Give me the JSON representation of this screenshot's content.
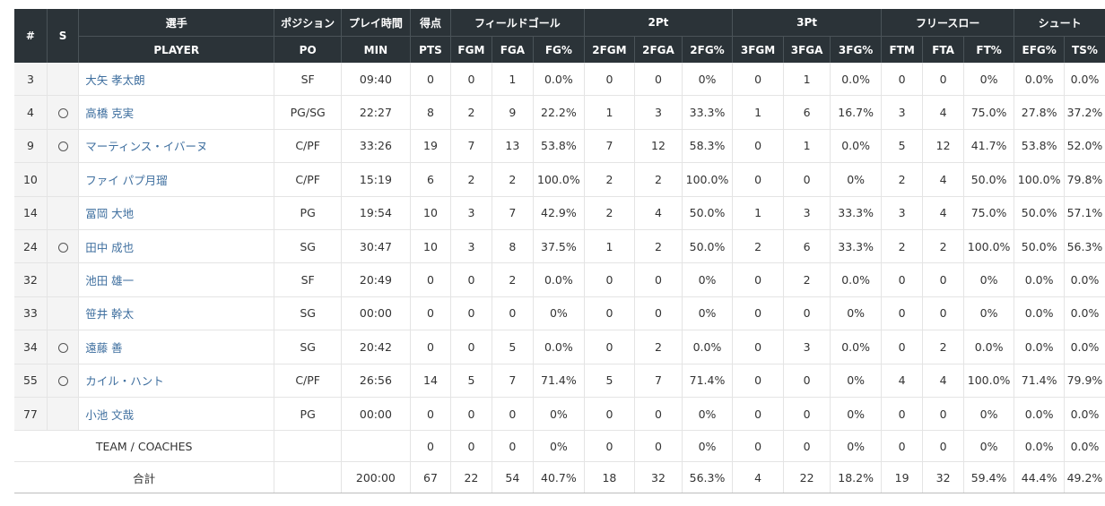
{
  "header": {
    "top": {
      "num": "#",
      "starter": "S",
      "player": "選手",
      "position": "ポジション",
      "minutes": "プレイ時間",
      "points": "得点",
      "fg": "フィールドゴール",
      "two": "2Pt",
      "three": "3Pt",
      "ft": "フリースロー",
      "shoot": "シュート"
    },
    "sub": [
      "PLAYER",
      "PO",
      "MIN",
      "PTS",
      "FGM",
      "FGA",
      "FG%",
      "2FGM",
      "2FGA",
      "2FG%",
      "3FGM",
      "3FGA",
      "3FG%",
      "FTM",
      "FTA",
      "FT%",
      "EFG%",
      "TS%"
    ]
  },
  "starter_mark": "○",
  "players": [
    {
      "num": "3",
      "s": false,
      "name": "大矢 孝太朗",
      "po": "SF",
      "min": "09:40",
      "pts": "0",
      "fgm": "0",
      "fga": "1",
      "fgp": "0.0%",
      "f2m": "0",
      "f2a": "0",
      "f2p": "0%",
      "f3m": "0",
      "f3a": "1",
      "f3p": "0.0%",
      "ftm": "0",
      "fta": "0",
      "ftp": "0%",
      "efg": "0.0%",
      "ts": "0.0%"
    },
    {
      "num": "4",
      "s": true,
      "name": "高橋 克実",
      "po": "PG/SG",
      "min": "22:27",
      "pts": "8",
      "fgm": "2",
      "fga": "9",
      "fgp": "22.2%",
      "f2m": "1",
      "f2a": "3",
      "f2p": "33.3%",
      "f3m": "1",
      "f3a": "6",
      "f3p": "16.7%",
      "ftm": "3",
      "fta": "4",
      "ftp": "75.0%",
      "efg": "27.8%",
      "ts": "37.2%"
    },
    {
      "num": "9",
      "s": true,
      "name": "マーティンス・イバーヌ",
      "po": "C/PF",
      "min": "33:26",
      "pts": "19",
      "fgm": "7",
      "fga": "13",
      "fgp": "53.8%",
      "f2m": "7",
      "f2a": "12",
      "f2p": "58.3%",
      "f3m": "0",
      "f3a": "1",
      "f3p": "0.0%",
      "ftm": "5",
      "fta": "12",
      "ftp": "41.7%",
      "efg": "53.8%",
      "ts": "52.0%"
    },
    {
      "num": "10",
      "s": false,
      "name": "ファイ パプ月瑠",
      "po": "C/PF",
      "min": "15:19",
      "pts": "6",
      "fgm": "2",
      "fga": "2",
      "fgp": "100.0%",
      "f2m": "2",
      "f2a": "2",
      "f2p": "100.0%",
      "f3m": "0",
      "f3a": "0",
      "f3p": "0%",
      "ftm": "2",
      "fta": "4",
      "ftp": "50.0%",
      "efg": "100.0%",
      "ts": "79.8%"
    },
    {
      "num": "14",
      "s": false,
      "name": "冨岡 大地",
      "po": "PG",
      "min": "19:54",
      "pts": "10",
      "fgm": "3",
      "fga": "7",
      "fgp": "42.9%",
      "f2m": "2",
      "f2a": "4",
      "f2p": "50.0%",
      "f3m": "1",
      "f3a": "3",
      "f3p": "33.3%",
      "ftm": "3",
      "fta": "4",
      "ftp": "75.0%",
      "efg": "50.0%",
      "ts": "57.1%"
    },
    {
      "num": "24",
      "s": true,
      "name": "田中 成也",
      "po": "SG",
      "min": "30:47",
      "pts": "10",
      "fgm": "3",
      "fga": "8",
      "fgp": "37.5%",
      "f2m": "1",
      "f2a": "2",
      "f2p": "50.0%",
      "f3m": "2",
      "f3a": "6",
      "f3p": "33.3%",
      "ftm": "2",
      "fta": "2",
      "ftp": "100.0%",
      "efg": "50.0%",
      "ts": "56.3%"
    },
    {
      "num": "32",
      "s": false,
      "name": "池田 雄一",
      "po": "SF",
      "min": "20:49",
      "pts": "0",
      "fgm": "0",
      "fga": "2",
      "fgp": "0.0%",
      "f2m": "0",
      "f2a": "0",
      "f2p": "0%",
      "f3m": "0",
      "f3a": "2",
      "f3p": "0.0%",
      "ftm": "0",
      "fta": "0",
      "ftp": "0%",
      "efg": "0.0%",
      "ts": "0.0%"
    },
    {
      "num": "33",
      "s": false,
      "name": "笹井 幹太",
      "po": "SG",
      "min": "00:00",
      "pts": "0",
      "fgm": "0",
      "fga": "0",
      "fgp": "0%",
      "f2m": "0",
      "f2a": "0",
      "f2p": "0%",
      "f3m": "0",
      "f3a": "0",
      "f3p": "0%",
      "ftm": "0",
      "fta": "0",
      "ftp": "0%",
      "efg": "0.0%",
      "ts": "0.0%"
    },
    {
      "num": "34",
      "s": true,
      "name": "遠藤 善",
      "po": "SG",
      "min": "20:42",
      "pts": "0",
      "fgm": "0",
      "fga": "5",
      "fgp": "0.0%",
      "f2m": "0",
      "f2a": "2",
      "f2p": "0.0%",
      "f3m": "0",
      "f3a": "3",
      "f3p": "0.0%",
      "ftm": "0",
      "fta": "2",
      "ftp": "0.0%",
      "efg": "0.0%",
      "ts": "0.0%"
    },
    {
      "num": "55",
      "s": true,
      "name": "カイル・ハント",
      "po": "C/PF",
      "min": "26:56",
      "pts": "14",
      "fgm": "5",
      "fga": "7",
      "fgp": "71.4%",
      "f2m": "5",
      "f2a": "7",
      "f2p": "71.4%",
      "f3m": "0",
      "f3a": "0",
      "f3p": "0%",
      "ftm": "4",
      "fta": "4",
      "ftp": "100.0%",
      "efg": "71.4%",
      "ts": "79.9%"
    },
    {
      "num": "77",
      "s": false,
      "name": "小池 文哉",
      "po": "PG",
      "min": "00:00",
      "pts": "0",
      "fgm": "0",
      "fga": "0",
      "fgp": "0%",
      "f2m": "0",
      "f2a": "0",
      "f2p": "0%",
      "f3m": "0",
      "f3a": "0",
      "f3p": "0%",
      "ftm": "0",
      "fta": "0",
      "ftp": "0%",
      "efg": "0.0%",
      "ts": "0.0%"
    }
  ],
  "team": {
    "label": "TEAM / COACHES",
    "po": "",
    "min": "",
    "pts": "0",
    "fgm": "0",
    "fga": "0",
    "fgp": "0%",
    "f2m": "0",
    "f2a": "0",
    "f2p": "0%",
    "f3m": "0",
    "f3a": "0",
    "f3p": "0%",
    "ftm": "0",
    "fta": "0",
    "ftp": "0%",
    "efg": "0.0%",
    "ts": "0.0%"
  },
  "total": {
    "label": "合計",
    "po": "",
    "min": "200:00",
    "pts": "67",
    "fgm": "22",
    "fga": "54",
    "fgp": "40.7%",
    "f2m": "18",
    "f2a": "32",
    "f2p": "56.3%",
    "f3m": "4",
    "f3a": "22",
    "f3p": "18.2%",
    "ftm": "19",
    "fta": "32",
    "ftp": "59.4%",
    "efg": "44.4%",
    "ts": "49.2%"
  }
}
